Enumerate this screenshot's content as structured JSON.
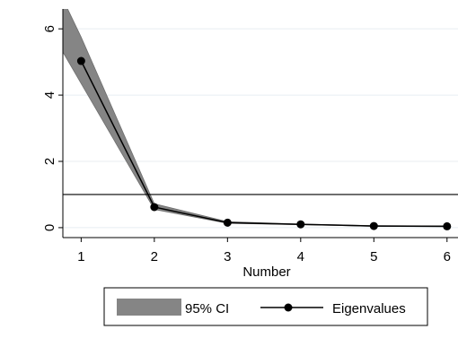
{
  "chart_data": {
    "type": "line",
    "title": "",
    "xlabel": "Number",
    "ylabel": "",
    "x": [
      1,
      2,
      3,
      4,
      5,
      6
    ],
    "xticks": [
      "1",
      "2",
      "3",
      "4",
      "5",
      "6"
    ],
    "yticks": [
      "0",
      "2",
      "4",
      "6"
    ],
    "xlim": [
      0.75,
      6.15
    ],
    "ylim": [
      -0.3,
      6.6
    ],
    "grid": true,
    "reference_line": {
      "y": 1
    },
    "series": [
      {
        "name": "Eigenvalues",
        "values": [
          5.03,
          0.62,
          0.15,
          0.1,
          0.05,
          0.04
        ]
      }
    ],
    "ci_band": {
      "name": "95% CI",
      "x": [
        0.75,
        1,
        2,
        3,
        4,
        5,
        6
      ],
      "lower": [
        5.3,
        4.35,
        0.55,
        0.13,
        0.09,
        0.04,
        0.03
      ],
      "upper": [
        6.9,
        5.75,
        0.72,
        0.18,
        0.11,
        0.06,
        0.05
      ]
    },
    "legend": {
      "position": "bottom",
      "items": [
        {
          "label": "95% CI",
          "kind": "band"
        },
        {
          "label": "Eigenvalues",
          "kind": "line-marker"
        }
      ]
    },
    "colors": {
      "band": "#858585",
      "band_edge": "#6e6e6e",
      "line": "#000000",
      "grid": "#e8eef2"
    }
  }
}
